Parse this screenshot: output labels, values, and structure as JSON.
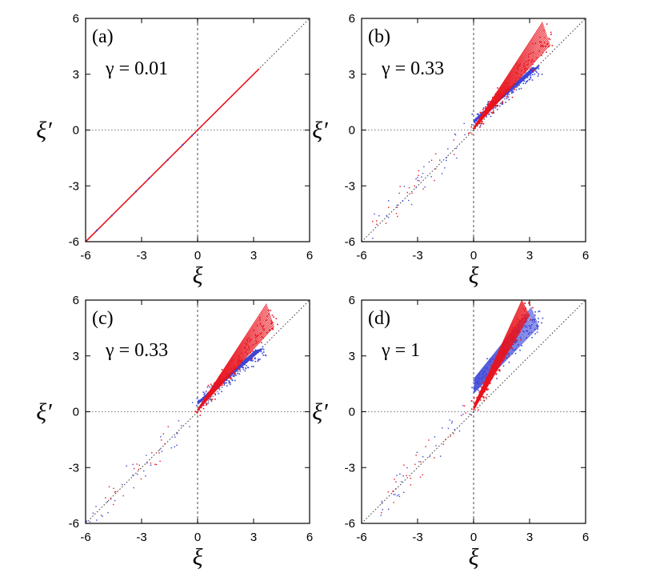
{
  "chart_data": [
    {
      "type": "scatter",
      "panel_label": "(a)",
      "annotation": "γ = 0.01",
      "xlabel": "ξ",
      "ylabel": "ξ′",
      "xlim": [
        -6,
        6
      ],
      "ylim": [
        -6,
        6
      ],
      "xticks": [
        "-6",
        "-3",
        "0",
        "3",
        "6"
      ],
      "yticks": [
        "-6",
        "-3",
        "0",
        "3",
        "6"
      ],
      "grid": false,
      "reference_lines": [
        "x = 0",
        "y = 0",
        "y = x"
      ],
      "series": [
        {
          "color": "#e8141e",
          "values": [
            [
              -6,
              -6
            ],
            [
              3.3,
              3.3
            ]
          ],
          "style": "line"
        },
        {
          "color": "#3c46d8",
          "values": [
            [
              -5.4,
              -5.4
            ],
            [
              -4.6,
              -4.6
            ],
            [
              -3.3,
              -3.3
            ],
            [
              -2.6,
              -2.6
            ],
            [
              -1.6,
              -1.6
            ],
            [
              -0.8,
              -0.8
            ],
            [
              -0.3,
              -0.3
            ]
          ],
          "style": "points"
        }
      ]
    },
    {
      "type": "scatter",
      "panel_label": "(b)",
      "annotation": "γ = 0.33",
      "xlabel": "ξ",
      "ylabel": "ξ′",
      "xlim": [
        -6,
        6
      ],
      "ylim": [
        -6,
        6
      ],
      "xticks": [
        "-6",
        "-3",
        "0",
        "3",
        "6"
      ],
      "yticks": [
        "-6",
        "-3",
        "0",
        "3",
        "6"
      ],
      "grid": false,
      "reference_lines": [
        "x = 0",
        "y = 0",
        "y = x"
      ],
      "series": [
        {
          "color": "#3c46d8",
          "style": "band",
          "x": [
            0,
            3.5
          ],
          "y_start": [
            0.4,
            3.4
          ],
          "y_end": [
            0.55,
            3.3
          ]
        },
        {
          "color": "#e8141e",
          "style": "band",
          "x": [
            0,
            4.1
          ],
          "y_start": [
            0.05,
            4.6
          ],
          "y_end": [
            0.2,
            5.8
          ]
        },
        {
          "color": "#e8141e",
          "style": "scatter",
          "x_range": [
            -5.5,
            0
          ],
          "y_range": [
            -5.5,
            0
          ]
        }
      ]
    },
    {
      "type": "scatter",
      "panel_label": "(c)",
      "annotation": "γ = 0.33",
      "xlabel": "ξ",
      "ylabel": "ξ′",
      "xlim": [
        -6,
        6
      ],
      "ylim": [
        -6,
        6
      ],
      "xticks": [
        "-6",
        "-3",
        "0",
        "3",
        "6"
      ],
      "yticks": [
        "-6",
        "-3",
        "0",
        "3",
        "6"
      ],
      "grid": false,
      "reference_lines": [
        "x = 0",
        "y = 0",
        "y = x"
      ],
      "series": [
        {
          "color": "#3c46d8",
          "style": "band",
          "x": [
            0,
            3.5
          ],
          "y_start": [
            0.4,
            3.4
          ],
          "y_end": [
            0.55,
            3.3
          ]
        },
        {
          "color": "#e8141e",
          "style": "band",
          "x": [
            0,
            4.1
          ],
          "y_start": [
            0.05,
            4.6
          ],
          "y_end": [
            0.2,
            5.8
          ]
        },
        {
          "color": "#e8141e",
          "style": "scatter",
          "x_range": [
            -6,
            0
          ],
          "y_range": [
            -6,
            0
          ]
        }
      ]
    },
    {
      "type": "scatter",
      "panel_label": "(d)",
      "annotation": "γ = 1",
      "xlabel": "ξ",
      "ylabel": "ξ′",
      "xlim": [
        -6,
        6
      ],
      "ylim": [
        -6,
        6
      ],
      "xticks": [
        "-6",
        "-3",
        "0",
        "3",
        "6"
      ],
      "yticks": [
        "-6",
        "-3",
        "0",
        "3",
        "6"
      ],
      "grid": false,
      "reference_lines": [
        "x = 0",
        "y = 0",
        "y = x"
      ],
      "series": [
        {
          "color": "#3c46d8",
          "style": "band",
          "x": [
            0,
            3.5
          ],
          "y_start": [
            1.0,
            4.6
          ],
          "y_end": [
            1.8,
            5.6
          ]
        },
        {
          "color": "#e8141e",
          "style": "band",
          "x": [
            0,
            3.0
          ],
          "y_start": [
            0.1,
            5.2
          ],
          "y_end": [
            0.4,
            6.0
          ]
        },
        {
          "color": "#e8141e",
          "style": "scatter",
          "x_range": [
            -5,
            0
          ],
          "y_range": [
            -5,
            0
          ]
        }
      ]
    }
  ]
}
